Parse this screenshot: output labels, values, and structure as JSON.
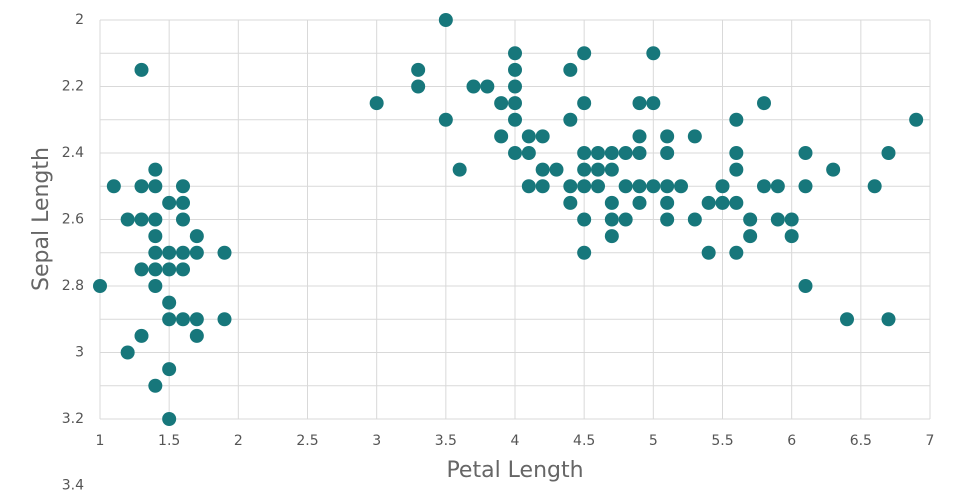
{
  "chart_data": {
    "type": "scatter",
    "x_label": "Petal Length",
    "y_label": "Sepal Length",
    "color": "#17777b",
    "grid": true,
    "y_inverted": true,
    "xlim": [
      1,
      7
    ],
    "xticks": [
      1,
      1.5,
      2,
      2.5,
      3,
      3.5,
      4,
      4.5,
      5,
      5.5,
      6,
      6.5,
      7
    ],
    "ylim": [
      2,
      3.2
    ],
    "yticks": [
      2,
      2.2,
      2.4,
      2.6,
      2.8,
      3,
      3.2,
      3.4
    ],
    "yminorticks": [
      2.1,
      2.3,
      2.5,
      2.7,
      2.9,
      3.1
    ],
    "x": [
      1.3,
      1.1,
      1.3,
      1.4,
      1.6,
      1.4,
      1.2,
      1.3,
      1.4,
      1.5,
      1.6,
      1.6,
      1.4,
      1.7,
      1.4,
      1.5,
      1.6,
      1.7,
      1.9,
      1.3,
      1.4,
      1.5,
      1.6,
      1.0,
      1.4,
      1.5,
      1.5,
      1.6,
      1.7,
      1.9,
      1.3,
      1.7,
      1.2,
      1.5,
      1.4,
      1.5,
      3.5,
      4.0,
      4.5,
      5.0,
      3.3,
      4.0,
      4.4,
      3.3,
      3.7,
      3.8,
      4.0,
      3.0,
      3.9,
      4.0,
      4.5,
      4.9,
      5.0,
      5.8,
      3.5,
      4.0,
      4.4,
      5.6,
      6.9,
      3.9,
      4.1,
      4.2,
      4.9,
      5.1,
      5.3,
      4.0,
      4.1,
      4.5,
      4.6,
      4.7,
      4.8,
      4.9,
      5.1,
      5.6,
      6.1,
      6.7,
      3.6,
      4.2,
      4.3,
      4.5,
      4.6,
      4.7,
      5.6,
      6.3,
      4.1,
      4.2,
      4.4,
      4.5,
      4.6,
      4.8,
      4.9,
      5.0,
      5.1,
      5.2,
      5.5,
      5.8,
      5.9,
      6.1,
      6.6,
      4.4,
      4.7,
      4.9,
      5.1,
      5.4,
      5.5,
      5.6,
      4.5,
      4.7,
      4.8,
      5.1,
      5.3,
      5.7,
      5.9,
      6.0,
      4.7,
      5.7,
      6.0,
      4.5,
      5.4,
      5.6,
      6.1,
      6.4,
      6.7
    ],
    "y": [
      2.15,
      2.5,
      2.5,
      2.5,
      2.5,
      2.45,
      2.6,
      2.6,
      2.6,
      2.55,
      2.55,
      2.6,
      2.65,
      2.65,
      2.7,
      2.7,
      2.7,
      2.7,
      2.7,
      2.75,
      2.75,
      2.75,
      2.75,
      2.8,
      2.8,
      2.85,
      2.9,
      2.9,
      2.9,
      2.9,
      2.95,
      2.95,
      3.0,
      3.05,
      3.1,
      3.2,
      2.0,
      2.1,
      2.1,
      2.1,
      2.15,
      2.15,
      2.15,
      2.2,
      2.2,
      2.2,
      2.2,
      2.25,
      2.25,
      2.25,
      2.25,
      2.25,
      2.25,
      2.25,
      2.3,
      2.3,
      2.3,
      2.3,
      2.3,
      2.35,
      2.35,
      2.35,
      2.35,
      2.35,
      2.35,
      2.4,
      2.4,
      2.4,
      2.4,
      2.4,
      2.4,
      2.4,
      2.4,
      2.4,
      2.4,
      2.4,
      2.45,
      2.45,
      2.45,
      2.45,
      2.45,
      2.45,
      2.45,
      2.45,
      2.5,
      2.5,
      2.5,
      2.5,
      2.5,
      2.5,
      2.5,
      2.5,
      2.5,
      2.5,
      2.5,
      2.5,
      2.5,
      2.5,
      2.5,
      2.55,
      2.55,
      2.55,
      2.55,
      2.55,
      2.55,
      2.55,
      2.6,
      2.6,
      2.6,
      2.6,
      2.6,
      2.6,
      2.6,
      2.6,
      2.65,
      2.65,
      2.65,
      2.7,
      2.7,
      2.7,
      2.8,
      2.9,
      2.9
    ]
  }
}
